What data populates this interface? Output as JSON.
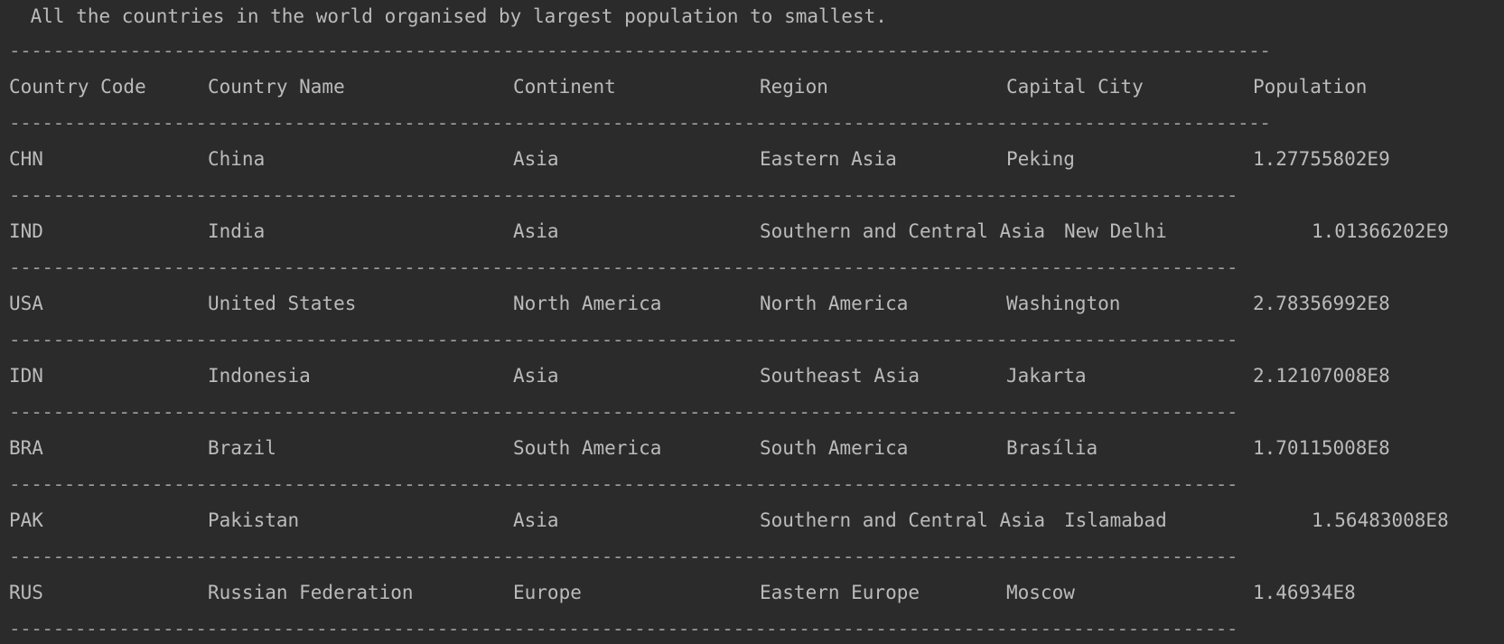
{
  "console": {
    "title": " All the countries in the world organised by largest population to smallest.",
    "separator_long": "-------------------------------------------------------------------------------------------------------------------",
    "separator_short": "----------------------------------------------------------------------------------------------------------------",
    "headers": [
      "Country Code",
      "Country Name",
      "Continent",
      "Region",
      "Capital City",
      "Population"
    ],
    "rows": [
      {
        "code": "CHN",
        "name": "China",
        "continent": "Asia",
        "region": "Eastern Asia",
        "capital": "Peking",
        "population": "1.27755802E9"
      },
      {
        "code": "IND",
        "name": "India",
        "continent": "Asia",
        "region": "Southern and Central Asia",
        "capital": "New Delhi",
        "population": "1.01366202E9"
      },
      {
        "code": "USA",
        "name": "United States",
        "continent": "North America",
        "region": "North America",
        "capital": "Washington",
        "population": "2.78356992E8"
      },
      {
        "code": "IDN",
        "name": "Indonesia",
        "continent": "Asia",
        "region": "Southeast Asia",
        "capital": "Jakarta",
        "population": "2.12107008E8"
      },
      {
        "code": "BRA",
        "name": "Brazil",
        "continent": "South America",
        "region": "South America",
        "capital": "Brasília",
        "population": "1.70115008E8"
      },
      {
        "code": "PAK",
        "name": "Pakistan",
        "continent": "Asia",
        "region": "Southern and Central Asia",
        "capital": "Islamabad",
        "population": "1.56483008E8"
      },
      {
        "code": "RUS",
        "name": "Russian Federation",
        "continent": "Europe",
        "region": "Eastern Europe",
        "capital": "Moscow",
        "population": "1.46934E8"
      }
    ]
  }
}
